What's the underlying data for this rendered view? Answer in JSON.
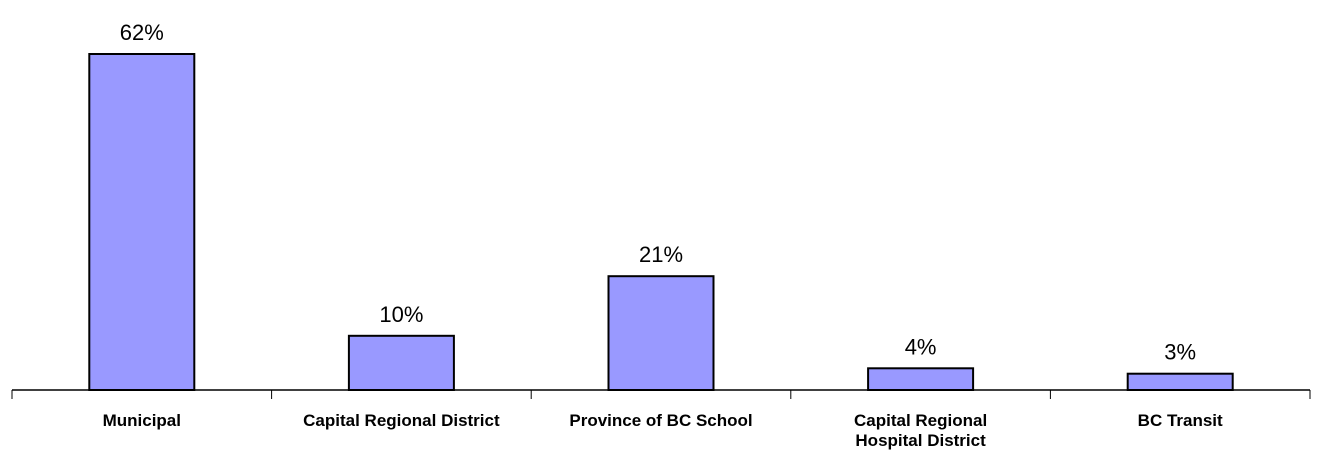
{
  "chart_data": {
    "type": "bar",
    "categories": [
      "Municipal",
      "Capital Regional District",
      "Province of BC School",
      "Capital Regional Hospital District",
      "BC Transit"
    ],
    "category_lines": [
      [
        "Municipal"
      ],
      [
        "Capital Regional District"
      ],
      [
        "Province of BC School"
      ],
      [
        "Capital Regional",
        "Hospital District"
      ],
      [
        "BC Transit"
      ]
    ],
    "values": [
      62,
      10,
      21,
      4,
      3
    ],
    "data_labels": [
      "62%",
      "10%",
      "21%",
      "4%",
      "3%"
    ],
    "title": "",
    "xlabel": "",
    "ylabel": "",
    "ylim": [
      0,
      62
    ],
    "grid": false,
    "legend": "none",
    "bar_color": "#9999ff",
    "bar_edge_color": "#000000"
  }
}
